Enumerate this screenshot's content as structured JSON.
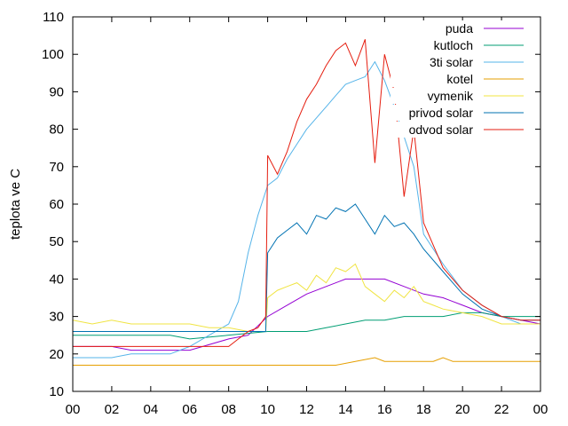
{
  "chart_data": {
    "type": "line",
    "title": "",
    "xlabel": "",
    "ylabel": "teplota ve C",
    "xlim": [
      0,
      24
    ],
    "ylim": [
      10,
      110
    ],
    "grid": false,
    "legend_position": "top-right",
    "x_ticks": [
      "00",
      "02",
      "04",
      "06",
      "08",
      "10",
      "12",
      "14",
      "16",
      "18",
      "20",
      "22",
      "00"
    ],
    "y_ticks": [
      "10",
      "20",
      "30",
      "40",
      "50",
      "60",
      "70",
      "80",
      "90",
      "100",
      "110"
    ],
    "series": [
      {
        "name": "puda",
        "color": "#9400d3",
        "x": [
          0,
          2,
          3,
          6,
          8,
          9,
          10,
          11,
          12,
          13,
          14,
          15,
          16,
          17,
          18,
          19,
          20,
          21,
          22,
          23,
          24
        ],
        "y": [
          22,
          22,
          21,
          21,
          24,
          25,
          30,
          33,
          36,
          38,
          40,
          40,
          40,
          38,
          36,
          35,
          33,
          31,
          30,
          29,
          28
        ]
      },
      {
        "name": "kutloch",
        "color": "#009e73",
        "x": [
          0,
          5,
          6,
          10,
          12,
          13,
          14,
          15,
          16,
          17,
          18,
          19,
          20,
          21,
          22,
          24
        ],
        "y": [
          25,
          25,
          24,
          26,
          26,
          27,
          28,
          29,
          29,
          30,
          30,
          30,
          31,
          31,
          30,
          30
        ]
      },
      {
        "name": "3ti solar",
        "color": "#56b4e9",
        "x": [
          0,
          2,
          3,
          5,
          6,
          7,
          8,
          8.5,
          9,
          9.5,
          10,
          10.5,
          11,
          11.5,
          12,
          12.5,
          13,
          13.5,
          14,
          14.5,
          15,
          15.5,
          16,
          16.5,
          17,
          17.5,
          18,
          19,
          20,
          21,
          22,
          23,
          24
        ],
        "y": [
          19,
          19,
          20,
          20,
          22,
          25,
          28,
          34,
          47,
          57,
          65,
          67,
          72,
          76,
          80,
          83,
          86,
          89,
          92,
          93,
          94,
          98,
          93,
          86,
          78,
          70,
          52,
          44,
          37,
          33,
          30,
          28,
          28
        ]
      },
      {
        "name": "kotel",
        "color": "#e69f00",
        "x": [
          0,
          13.5,
          14.5,
          15.5,
          16,
          18.5,
          19,
          19.5,
          24
        ],
        "y": [
          17,
          17,
          18,
          19,
          18,
          18,
          19,
          18,
          18
        ]
      },
      {
        "name": "vymenik",
        "color": "#f0e442",
        "x": [
          0,
          1,
          2,
          3,
          4,
          5,
          6,
          7,
          8,
          9,
          9.9,
          10,
          10.5,
          11,
          11.5,
          12,
          12.5,
          13,
          13.5,
          14,
          14.5,
          15,
          15.5,
          16,
          16.5,
          17,
          17.5,
          18,
          18.5,
          19,
          20,
          21,
          22,
          23,
          24
        ],
        "y": [
          29,
          28,
          29,
          28,
          28,
          28,
          28,
          27,
          27,
          26,
          26,
          35,
          37,
          38,
          39,
          37,
          41,
          39,
          43,
          42,
          44,
          38,
          36,
          34,
          37,
          35,
          38,
          34,
          33,
          32,
          31,
          30,
          28,
          28,
          28
        ]
      },
      {
        "name": "privod solar",
        "color": "#0072b2",
        "x": [
          0,
          9.9,
          10,
          10.5,
          11,
          11.5,
          12,
          12.5,
          13,
          13.5,
          14,
          14.5,
          15,
          15.5,
          16,
          16.5,
          17,
          17.5,
          18,
          19,
          20,
          21,
          22,
          23,
          24
        ],
        "y": [
          26,
          26,
          47,
          51,
          53,
          55,
          52,
          57,
          56,
          59,
          58,
          60,
          56,
          52,
          57,
          54,
          55,
          52,
          48,
          42,
          36,
          32,
          30,
          29,
          29
        ]
      },
      {
        "name": "odvod solar",
        "color": "#e51e10",
        "x": [
          0,
          8,
          8.5,
          9,
          9.5,
          9.9,
          10,
          10.5,
          11,
          11.5,
          12,
          12.5,
          13,
          13.5,
          14,
          14.5,
          15,
          15.5,
          16,
          16.5,
          17,
          17.5,
          18,
          19,
          20,
          21,
          22,
          23,
          24
        ],
        "y": [
          22,
          22,
          24,
          26,
          27,
          30,
          73,
          68,
          74,
          82,
          88,
          92,
          97,
          101,
          103,
          97,
          104,
          71,
          100,
          90,
          62,
          80,
          55,
          43,
          37,
          33,
          30,
          29,
          29
        ]
      }
    ]
  }
}
